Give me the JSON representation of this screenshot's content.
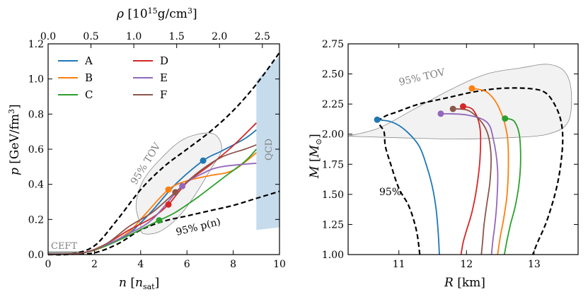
{
  "colors": {
    "A": "#1f77b4",
    "B": "#ff7f0e",
    "C": "#2ca02c",
    "D": "#d62728",
    "E": "#9467bd",
    "F": "#8c564b",
    "band": "#7f7f7f",
    "qcd": "#c6dcec",
    "tov_fill": "#f2f2f2"
  },
  "chart_data": [
    {
      "type": "line",
      "xlabel": "n [n_sat]",
      "ylabel": "p [GeV/fm³]",
      "top_xlabel": "ρ [10¹⁵g/cm³]",
      "xlim": [
        0,
        10
      ],
      "ylim": [
        0,
        1.2
      ],
      "xticks": [
        0,
        2,
        4,
        6,
        8,
        10
      ],
      "yticks": [
        0.0,
        0.2,
        0.4,
        0.6,
        0.8,
        1.0,
        1.2
      ],
      "top_xticks": [
        0.0,
        0.5,
        1.0,
        1.5,
        2.0,
        2.5
      ],
      "top_xlim": [
        0,
        2.7
      ],
      "legend": {
        "placement": "top-left",
        "entries": [
          "A",
          "B",
          "C",
          "D",
          "E",
          "F"
        ]
      },
      "annotations": {
        "ceft": "CEFT",
        "tov": "95% TOV",
        "pn": "95% p(n)",
        "qcd": "QCD"
      },
      "series": [
        {
          "name": "A",
          "x": [
            0,
            1.5,
            2.5,
            3.5,
            4.5,
            5.5,
            6.7,
            7.5,
            8.5,
            9
          ],
          "y": [
            0,
            0.01,
            0.05,
            0.12,
            0.25,
            0.4,
            0.535,
            0.59,
            0.66,
            0.71
          ],
          "marker": [
            6.7,
            0.535
          ]
        },
        {
          "name": "B",
          "x": [
            0,
            1.5,
            2.5,
            3.5,
            4.2,
            5.2,
            6,
            7,
            8,
            9
          ],
          "y": [
            0,
            0.01,
            0.05,
            0.13,
            0.23,
            0.37,
            0.42,
            0.45,
            0.48,
            0.58
          ],
          "marker": [
            5.2,
            0.37
          ]
        },
        {
          "name": "C",
          "x": [
            0,
            1.5,
            2.5,
            3.5,
            4.8,
            5.5,
            6.5,
            7.5,
            8.5,
            9
          ],
          "y": [
            0,
            0.01,
            0.05,
            0.11,
            0.195,
            0.24,
            0.33,
            0.43,
            0.53,
            0.6
          ],
          "marker": [
            4.8,
            0.195
          ]
        },
        {
          "name": "D",
          "x": [
            0,
            1.5,
            2.5,
            3.5,
            4.5,
            5.2,
            6,
            7,
            8,
            9
          ],
          "y": [
            0,
            0.01,
            0.06,
            0.14,
            0.21,
            0.285,
            0.41,
            0.51,
            0.62,
            0.75
          ],
          "marker": [
            5.2,
            0.285
          ]
        },
        {
          "name": "E",
          "x": [
            0,
            1.5,
            2.5,
            3.5,
            4.5,
            5.8,
            6.8,
            7.5,
            8.5,
            9
          ],
          "y": [
            0,
            0.01,
            0.055,
            0.12,
            0.2,
            0.39,
            0.47,
            0.5,
            0.515,
            0.52
          ],
          "marker": [
            5.8,
            0.39
          ]
        },
        {
          "name": "F",
          "x": [
            0,
            1.5,
            2.5,
            3.5,
            4.5,
            5.5,
            6.5,
            7.5,
            8.5,
            9
          ],
          "y": [
            0,
            0.01,
            0.06,
            0.16,
            0.24,
            0.355,
            0.47,
            0.555,
            0.6,
            0.625
          ],
          "marker": [
            5.5,
            0.355
          ]
        }
      ],
      "band_upper": {
        "x": [
          0,
          1,
          2,
          3,
          4,
          5,
          6,
          7,
          8,
          9,
          10
        ],
        "y": [
          0,
          0.004,
          0.05,
          0.2,
          0.37,
          0.5,
          0.6,
          0.7,
          0.82,
          0.97,
          1.15
        ]
      },
      "band_lower": {
        "x": [
          0,
          1,
          2,
          3,
          4,
          5,
          6,
          7,
          8,
          9,
          10
        ],
        "y": [
          0,
          0.002,
          0.01,
          0.06,
          0.14,
          0.19,
          0.22,
          0.25,
          0.28,
          0.32,
          0.36
        ]
      },
      "qcd_region": {
        "x": [
          9,
          10
        ],
        "y_lower": [
          0.14,
          0.155
        ],
        "y_upper": [
          0.99,
          1.13
        ]
      },
      "ceft_region": {
        "x": [
          0,
          1.5
        ],
        "y": [
          0,
          0.006
        ]
      }
    },
    {
      "type": "line",
      "xlabel": "R [km]",
      "ylabel": "M [M⊙]",
      "xlim": [
        10.25,
        13.65
      ],
      "ylim": [
        1.0,
        2.75
      ],
      "xticks": [
        11,
        12,
        13
      ],
      "yticks": [
        1.0,
        1.25,
        1.5,
        1.75,
        2.0,
        2.25,
        2.5,
        2.75
      ],
      "annotations": {
        "tov": "95% TOV",
        "band": "95%"
      },
      "series": [
        {
          "name": "A",
          "x": [
            10.68,
            10.9,
            11.1,
            11.3,
            11.42,
            11.5,
            11.55,
            11.58,
            11.6
          ],
          "y": [
            2.12,
            2.1,
            2.03,
            1.9,
            1.72,
            1.55,
            1.38,
            1.2,
            1.0
          ],
          "marker": [
            10.68,
            2.12
          ]
        },
        {
          "name": "B",
          "x": [
            12.08,
            12.3,
            12.48,
            12.6,
            12.62,
            12.6,
            12.55,
            12.5,
            12.46
          ],
          "y": [
            2.38,
            2.35,
            2.22,
            2.0,
            1.75,
            1.5,
            1.3,
            1.15,
            1.0
          ],
          "marker": [
            12.08,
            2.38
          ]
        },
        {
          "name": "C",
          "x": [
            12.57,
            12.7,
            12.78,
            12.8,
            12.78,
            12.72,
            12.65,
            12.6,
            12.56
          ],
          "y": [
            2.13,
            2.11,
            2.0,
            1.8,
            1.6,
            1.4,
            1.25,
            1.12,
            1.0
          ],
          "marker": [
            12.57,
            2.13
          ]
        },
        {
          "name": "D",
          "x": [
            11.95,
            12.1,
            12.2,
            12.2,
            12.15,
            12.08,
            12.0,
            11.95,
            11.92
          ],
          "y": [
            2.23,
            2.2,
            2.05,
            1.8,
            1.55,
            1.35,
            1.2,
            1.1,
            1.0
          ],
          "marker": [
            11.95,
            2.23
          ]
        },
        {
          "name": "E",
          "x": [
            11.62,
            12.0,
            12.3,
            12.4,
            12.46,
            12.45,
            12.42,
            12.39,
            12.37
          ],
          "y": [
            2.17,
            2.16,
            2.1,
            1.95,
            1.7,
            1.45,
            1.25,
            1.12,
            1.0
          ],
          "marker": [
            11.62,
            2.17
          ]
        },
        {
          "name": "F",
          "x": [
            11.8,
            12.05,
            12.28,
            12.36,
            12.35,
            12.3,
            12.26,
            12.24,
            12.22
          ],
          "y": [
            2.21,
            2.19,
            2.05,
            1.85,
            1.62,
            1.42,
            1.25,
            1.12,
            1.0
          ],
          "marker": [
            11.8,
            2.21
          ]
        }
      ],
      "band_left": {
        "x": [
          11.31,
          11.26,
          11.15,
          11.0,
          10.88,
          10.8,
          10.78,
          10.7,
          10.8,
          10.95
        ],
        "y": [
          1.0,
          1.2,
          1.4,
          1.55,
          1.75,
          1.9,
          2.02,
          2.1,
          2.15,
          2.18
        ]
      },
      "band_right": {
        "x": [
          10.95,
          11.3,
          11.7,
          12.1,
          12.5,
          12.9,
          13.15,
          13.3,
          13.4,
          13.42,
          13.35,
          13.2,
          13.05,
          12.98
        ],
        "y": [
          2.18,
          2.25,
          2.3,
          2.35,
          2.38,
          2.38,
          2.35,
          2.25,
          2.1,
          1.9,
          1.6,
          1.3,
          1.1,
          1.0
        ]
      },
      "tov_region": {
        "x": [
          10.25,
          10.7,
          11.2,
          11.8,
          12.3,
          12.8,
          13.2,
          13.45,
          13.55,
          13.5,
          13.2,
          12.6,
          11.8,
          11.0,
          10.4,
          10.25
        ],
        "y": [
          1.985,
          2.05,
          2.2,
          2.38,
          2.5,
          2.55,
          2.58,
          2.52,
          2.35,
          2.1,
          2.0,
          1.97,
          1.96,
          1.97,
          1.98,
          1.985
        ]
      }
    }
  ]
}
